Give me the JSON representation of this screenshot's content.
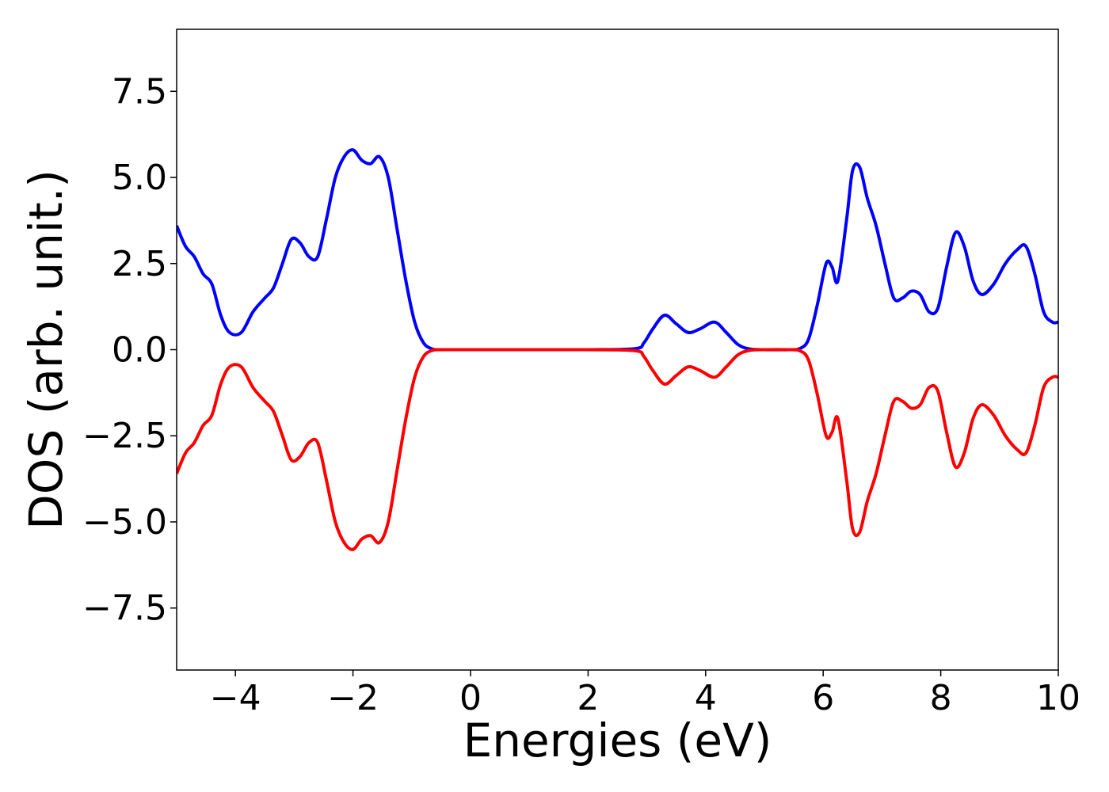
{
  "chart_data": {
    "type": "line",
    "title": "",
    "xlabel": "Energies (eV)",
    "ylabel": "DOS (arb. unit.)",
    "xlim": [
      -5,
      10
    ],
    "ylim": [
      -9.3,
      9.3
    ],
    "xticks": [
      -4,
      -2,
      0,
      2,
      4,
      6,
      8,
      10
    ],
    "xtick_labels": [
      "−4",
      "−2",
      "0",
      "2",
      "4",
      "6",
      "8",
      "10"
    ],
    "yticks": [
      -7.5,
      -5.0,
      -2.5,
      0.0,
      2.5,
      5.0,
      7.5
    ],
    "ytick_labels": [
      "−7.5",
      "−5.0",
      "−2.5",
      "0.0",
      "2.5",
      "5.0",
      "7.5"
    ],
    "grid": false,
    "legend": "none",
    "series": [
      {
        "color": "#0000ff",
        "x": [
          -5.0,
          -4.85,
          -4.7,
          -4.55,
          -4.4,
          -4.25,
          -4.1,
          -3.9,
          -3.7,
          -3.5,
          -3.35,
          -3.2,
          -3.05,
          -2.9,
          -2.75,
          -2.6,
          -2.45,
          -2.3,
          -2.15,
          -2.0,
          -1.85,
          -1.7,
          -1.55,
          -1.4,
          -1.25,
          -1.1,
          -0.95,
          -0.8,
          -0.65,
          -0.5,
          0.0,
          1.0,
          2.0,
          2.8,
          2.95,
          3.1,
          3.3,
          3.5,
          3.7,
          3.9,
          4.15,
          4.35,
          4.55,
          4.75,
          5.0,
          5.4,
          5.6,
          5.75,
          5.9,
          6.05,
          6.15,
          6.25,
          6.4,
          6.5,
          6.62,
          6.75,
          6.9,
          7.05,
          7.2,
          7.35,
          7.5,
          7.65,
          7.8,
          7.95,
          8.1,
          8.25,
          8.4,
          8.55,
          8.7,
          8.9,
          9.1,
          9.3,
          9.45,
          9.6,
          9.75,
          9.9,
          10.0
        ],
        "values": [
          3.6,
          3.0,
          2.7,
          2.2,
          1.9,
          1.0,
          0.5,
          0.5,
          1.1,
          1.5,
          1.8,
          2.5,
          3.2,
          3.1,
          2.7,
          2.7,
          3.8,
          5.0,
          5.6,
          5.8,
          5.5,
          5.4,
          5.6,
          5.0,
          3.5,
          2.0,
          0.8,
          0.2,
          0.02,
          0.0,
          0.0,
          0.0,
          0.0,
          0.03,
          0.2,
          0.6,
          1.0,
          0.75,
          0.5,
          0.6,
          0.8,
          0.5,
          0.15,
          0.02,
          0.0,
          0.0,
          0.03,
          0.3,
          1.3,
          2.5,
          2.4,
          2.0,
          3.8,
          5.2,
          5.3,
          4.4,
          3.6,
          2.5,
          1.5,
          1.5,
          1.7,
          1.6,
          1.1,
          1.2,
          2.4,
          3.4,
          3.0,
          2.0,
          1.6,
          1.9,
          2.5,
          2.9,
          3.0,
          2.2,
          1.1,
          0.8,
          0.8
        ]
      },
      {
        "color": "#ff0000",
        "x": [
          -5.0,
          -4.85,
          -4.7,
          -4.55,
          -4.4,
          -4.25,
          -4.1,
          -3.9,
          -3.7,
          -3.5,
          -3.35,
          -3.2,
          -3.05,
          -2.9,
          -2.75,
          -2.6,
          -2.45,
          -2.3,
          -2.15,
          -2.0,
          -1.85,
          -1.7,
          -1.55,
          -1.4,
          -1.25,
          -1.1,
          -0.95,
          -0.8,
          -0.65,
          -0.5,
          0.0,
          1.0,
          2.0,
          2.8,
          2.95,
          3.1,
          3.3,
          3.5,
          3.7,
          3.9,
          4.15,
          4.35,
          4.55,
          4.75,
          5.0,
          5.4,
          5.6,
          5.75,
          5.9,
          6.05,
          6.15,
          6.25,
          6.4,
          6.5,
          6.62,
          6.75,
          6.9,
          7.05,
          7.2,
          7.35,
          7.5,
          7.65,
          7.8,
          7.95,
          8.1,
          8.25,
          8.4,
          8.55,
          8.7,
          8.9,
          9.1,
          9.3,
          9.45,
          9.6,
          9.75,
          9.9,
          10.0
        ],
        "values": [
          -3.6,
          -3.0,
          -2.7,
          -2.2,
          -1.9,
          -1.0,
          -0.5,
          -0.5,
          -1.1,
          -1.5,
          -1.8,
          -2.5,
          -3.2,
          -3.1,
          -2.7,
          -2.7,
          -3.8,
          -5.0,
          -5.6,
          -5.8,
          -5.5,
          -5.4,
          -5.6,
          -5.0,
          -3.5,
          -2.0,
          -0.8,
          -0.2,
          -0.02,
          0.0,
          0.0,
          0.0,
          0.0,
          -0.03,
          -0.2,
          -0.6,
          -1.0,
          -0.75,
          -0.5,
          -0.6,
          -0.8,
          -0.5,
          -0.15,
          -0.02,
          0.0,
          0.0,
          -0.03,
          -0.3,
          -1.3,
          -2.5,
          -2.4,
          -2.0,
          -3.8,
          -5.2,
          -5.3,
          -4.4,
          -3.6,
          -2.5,
          -1.5,
          -1.5,
          -1.7,
          -1.6,
          -1.1,
          -1.2,
          -2.4,
          -3.4,
          -3.0,
          -2.0,
          -1.6,
          -1.9,
          -2.5,
          -2.9,
          -3.0,
          -2.2,
          -1.1,
          -0.8,
          -0.8
        ]
      }
    ]
  }
}
